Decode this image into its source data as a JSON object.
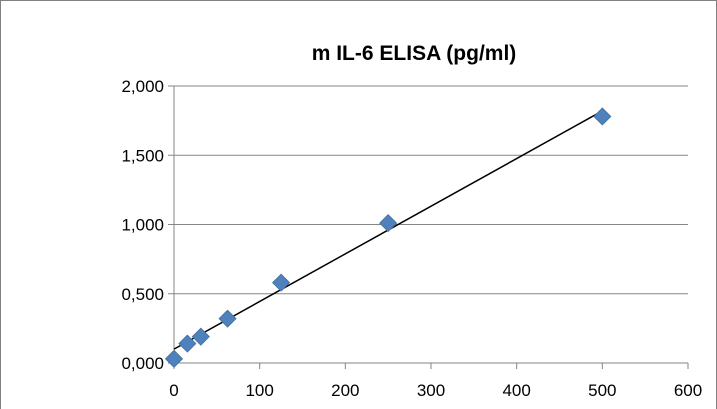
{
  "chart_data": {
    "type": "scatter",
    "title": "m IL-6 ELISA (pg/ml)",
    "xlabel": "",
    "ylabel": "",
    "xlim": [
      0,
      600
    ],
    "ylim": [
      0,
      2
    ],
    "x_ticks": [
      0,
      100,
      200,
      300,
      400,
      500,
      600
    ],
    "x_tick_labels": [
      "0",
      "100",
      "200",
      "300",
      "400",
      "500",
      "600"
    ],
    "y_ticks": [
      0,
      0.5,
      1,
      1.5,
      2
    ],
    "y_tick_labels": [
      "0,000",
      "0,500",
      "1,000",
      "1,500",
      "2,000"
    ],
    "grid": "horizontal",
    "legend": "none",
    "series": [
      {
        "x": [
          0,
          15.6,
          31.3,
          62.5,
          125,
          250,
          500
        ],
        "y": [
          0.03,
          0.14,
          0.19,
          0.32,
          0.58,
          1.01,
          1.78
        ],
        "marker": "diamond",
        "color": "#4F81BD"
      }
    ],
    "trendline": {
      "type": "linear",
      "from": [
        0,
        0.1
      ],
      "to": [
        500,
        1.82
      ],
      "color": "#000000"
    }
  }
}
